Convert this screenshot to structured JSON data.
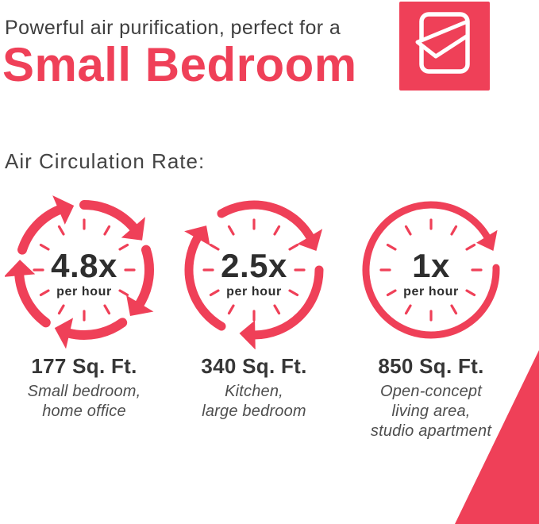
{
  "colors": {
    "pink": "#EF4058",
    "heading": "#3E3E3E",
    "number": "#2E2E2E",
    "rooms_text": "#4E4E4E"
  },
  "header": {
    "subtitle": "Powerful air purification, perfect for a",
    "title": "Small Bedroom"
  },
  "icons": {
    "header_badge": "bed-duvet-icon",
    "clock_ring": "circular-arrows-clock-icon",
    "corner_accent": "triangle-accent"
  },
  "section": {
    "title": "Air Circulation Rate:"
  },
  "clocks": {
    "items": [
      {
        "rate": "4.8x",
        "unit": "per hour",
        "area": "177 Sq. Ft.",
        "rooms": [
          "Small bedroom,",
          "home office"
        ],
        "arrow_segments": 5
      },
      {
        "rate": "2.5x",
        "unit": "per hour",
        "area": "340 Sq. Ft.",
        "rooms": [
          "Kitchen,",
          "large bedroom"
        ],
        "arrow_segments": 3
      },
      {
        "rate": "1x",
        "unit": "per hour",
        "area": "850 Sq. Ft.",
        "rooms": [
          "Open-concept",
          "living area,",
          "studio apartment"
        ],
        "arrow_segments": 1
      }
    ]
  }
}
